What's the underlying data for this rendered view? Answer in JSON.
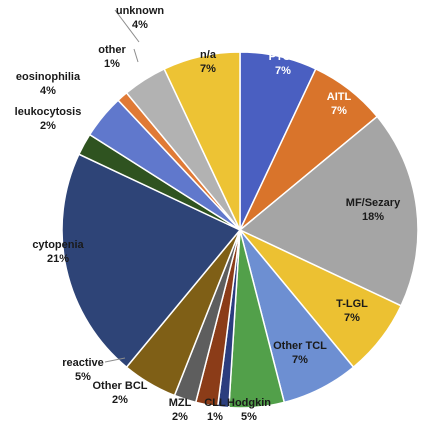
{
  "chart_data": {
    "type": "pie",
    "title": "",
    "slices": [
      {
        "label": "PTCL",
        "percent_label": "7%",
        "value": 7,
        "color": "#4a5fc1",
        "label_color": "#ffffff"
      },
      {
        "label": "AITL",
        "percent_label": "7%",
        "value": 7,
        "color": "#d9742b",
        "label_color": "#ffffff"
      },
      {
        "label": "MF/Sezary",
        "percent_label": "18%",
        "value": 18,
        "color": "#a5a5a5",
        "label_color": "#1a1a1a"
      },
      {
        "label": "T-LGL",
        "percent_label": "7%",
        "value": 7,
        "color": "#ecc132",
        "label_color": "#1a1a1a"
      },
      {
        "label": "Other TCL",
        "percent_label": "7%",
        "value": 7,
        "color": "#6d8fd2",
        "label_color": "#1a1a1a"
      },
      {
        "label": "Hodgkin",
        "percent_label": "5%",
        "value": 5,
        "color": "#52a04a",
        "label_color": "#1a1a1a"
      },
      {
        "label": "CLL",
        "percent_label": "1%",
        "value": 1,
        "color": "#2b3d7e",
        "label_color": "#1a1a1a"
      },
      {
        "label": "MZL",
        "percent_label": "2%",
        "value": 2,
        "color": "#8b3c18",
        "label_color": "#1a1a1a"
      },
      {
        "label": "Other BCL",
        "percent_label": "2%",
        "value": 2,
        "color": "#5e5e5e",
        "label_color": "#1a1a1a"
      },
      {
        "label": "reactive",
        "percent_label": "5%",
        "value": 5,
        "color": "#7f5f16",
        "label_color": "#1a1a1a"
      },
      {
        "label": "cytopenia",
        "percent_label": "21%",
        "value": 21,
        "color": "#2e4477",
        "label_color": "#1a1a1a"
      },
      {
        "label": "leukocytosis",
        "percent_label": "2%",
        "value": 2,
        "color": "#2f5320",
        "label_color": "#1a1a1a"
      },
      {
        "label": "eosinophilia",
        "percent_label": "4%",
        "value": 4,
        "color": "#6078cc",
        "label_color": "#1a1a1a"
      },
      {
        "label": "other",
        "percent_label": "1%",
        "value": 1,
        "color": "#e07a36",
        "label_color": "#1a1a1a"
      },
      {
        "label": "unknown",
        "percent_label": "4%",
        "value": 4,
        "color": "#b2b2b2",
        "label_color": "#1a1a1a"
      },
      {
        "label": "n/a",
        "percent_label": "7%",
        "value": 7,
        "color": "#edc334",
        "label_color": "#1a1a1a"
      }
    ]
  }
}
